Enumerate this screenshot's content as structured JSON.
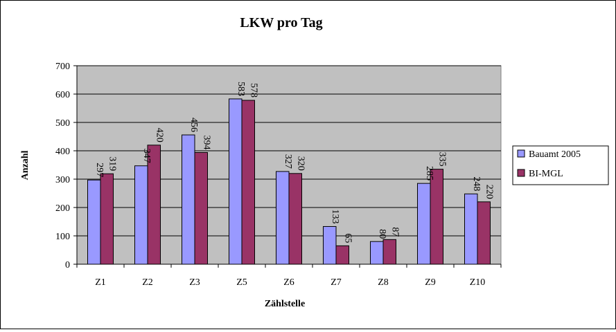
{
  "chart_data": {
    "type": "bar",
    "title": "LKW pro Tag",
    "xlabel": "Zählstelle",
    "ylabel": "Anzahl",
    "categories": [
      "Z1",
      "Z2",
      "Z3",
      "Z5",
      "Z6",
      "Z7",
      "Z8",
      "Z9",
      "Z10"
    ],
    "ylim": [
      0,
      700
    ],
    "yticks": [
      "0",
      "100",
      "200",
      "300",
      "400",
      "500",
      "600",
      "700"
    ],
    "grid": true,
    "legend_position": "right",
    "plot_background": "#c0c0c0",
    "series": [
      {
        "name": "Bauamt 2005",
        "color": "#9999ff",
        "values": [
          297,
          347,
          456,
          583,
          327,
          133,
          80,
          285,
          248
        ]
      },
      {
        "name": "BI-MGL",
        "color": "#993366",
        "values": [
          319,
          420,
          394,
          578,
          320,
          65,
          87,
          335,
          220
        ]
      }
    ]
  }
}
